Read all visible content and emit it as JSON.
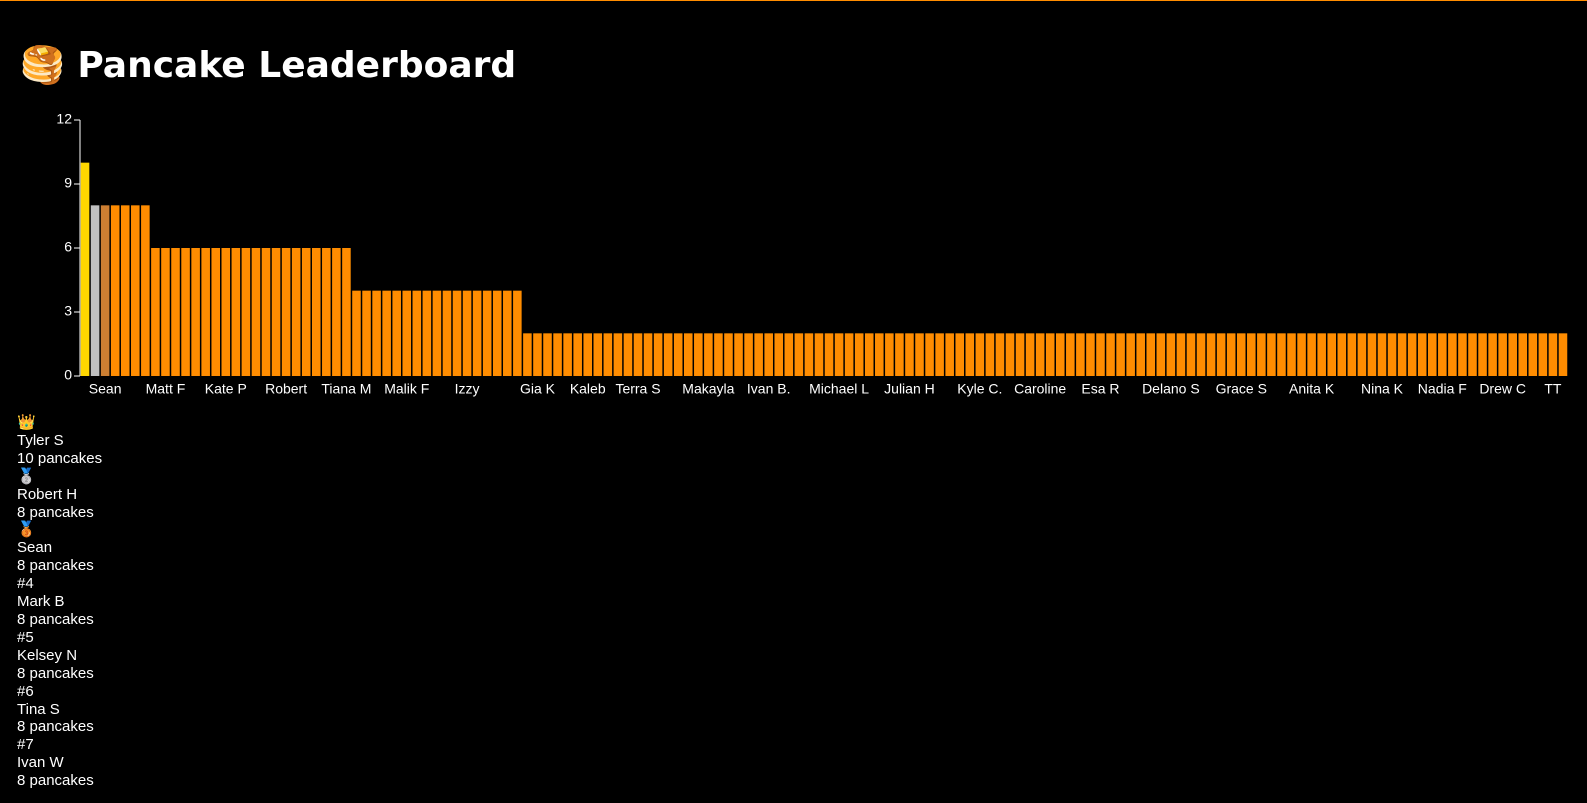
{
  "chart_data": {
    "type": "bar",
    "title": "🥞 Pancake Leaderboard",
    "categories": [
      null,
      null,
      "Sean",
      null,
      null,
      null,
      null,
      null,
      "Matt F",
      null,
      null,
      null,
      null,
      null,
      "Kate P",
      null,
      null,
      null,
      null,
      null,
      "Robert",
      null,
      null,
      null,
      null,
      null,
      "Tiana M",
      null,
      null,
      null,
      null,
      null,
      "Malik F",
      null,
      null,
      null,
      null,
      null,
      "Izzy",
      null,
      null,
      null,
      null,
      null,
      null,
      "Gia K",
      null,
      null,
      null,
      null,
      "Kaleb",
      null,
      null,
      null,
      null,
      "Terra S",
      null,
      null,
      null,
      null,
      null,
      null,
      "Makayla",
      null,
      null,
      null,
      null,
      null,
      "Ivan B.",
      null,
      null,
      null,
      null,
      null,
      null,
      "Michael L",
      null,
      null,
      null,
      null,
      null,
      null,
      "Julian H",
      null,
      null,
      null,
      null,
      null,
      null,
      "Kyle C.",
      null,
      null,
      null,
      null,
      null,
      "Caroline",
      null,
      null,
      null,
      null,
      null,
      "Esa R",
      null,
      null,
      null,
      null,
      null,
      null,
      "Delano S",
      null,
      null,
      null,
      null,
      null,
      null,
      "Grace S",
      null,
      null,
      null,
      null,
      null,
      null,
      "Anita K",
      null,
      null,
      null,
      null,
      null,
      null,
      "Nina K",
      null,
      null,
      null,
      null,
      null,
      "Nadia F",
      null,
      null,
      null,
      null,
      null,
      "Drew C",
      null,
      null,
      null,
      null,
      "TT",
      null
    ],
    "values": [
      10,
      8,
      8,
      8,
      8,
      8,
      8,
      6,
      6,
      6,
      6,
      6,
      6,
      6,
      6,
      6,
      6,
      6,
      6,
      6,
      6,
      6,
      6,
      6,
      6,
      6,
      6,
      4,
      4,
      4,
      4,
      4,
      4,
      4,
      4,
      4,
      4,
      4,
      4,
      4,
      4,
      4,
      4,
      4,
      2,
      2,
      2,
      2,
      2,
      2,
      2,
      2,
      2,
      2,
      2,
      2,
      2,
      2,
      2,
      2,
      2,
      2,
      2,
      2,
      2,
      2,
      2,
      2,
      2,
      2,
      2,
      2,
      2,
      2,
      2,
      2,
      2,
      2,
      2,
      2,
      2,
      2,
      2,
      2,
      2,
      2,
      2,
      2,
      2,
      2,
      2,
      2,
      2,
      2,
      2,
      2,
      2,
      2,
      2,
      2,
      2,
      2,
      2,
      2,
      2,
      2,
      2,
      2,
      2,
      2,
      2,
      2,
      2,
      2,
      2,
      2,
      2,
      2,
      2,
      2,
      2,
      2,
      2,
      2,
      2,
      2,
      2,
      2,
      2,
      2,
      2,
      2,
      2,
      2,
      2,
      2,
      2,
      2,
      2,
      2,
      2,
      2,
      2,
      2,
      2,
      2,
      2,
      2
    ],
    "color": "#ff8c00",
    "highlight_colors": [
      "#ffd700",
      "#c0c0c0",
      "#cd7f32"
    ],
    "ylim": [
      0,
      12
    ],
    "yticks": [
      0,
      3,
      6,
      9,
      12
    ]
  },
  "leaderboard": [
    {
      "rank": "👑",
      "name": "Tyler S",
      "score": "10 pancakes"
    },
    {
      "rank": "🥈",
      "name": "Robert H",
      "score": "8 pancakes"
    },
    {
      "rank": "🥉",
      "name": "Sean",
      "score": "8 pancakes"
    },
    {
      "rank": "#4",
      "name": "Mark B",
      "score": "8 pancakes"
    },
    {
      "rank": "#5",
      "name": "Kelsey N",
      "score": "8 pancakes"
    },
    {
      "rank": "#6",
      "name": "Tina S",
      "score": "8 pancakes"
    },
    {
      "rank": "#7",
      "name": "Ivan W",
      "score": "8 pancakes"
    }
  ]
}
